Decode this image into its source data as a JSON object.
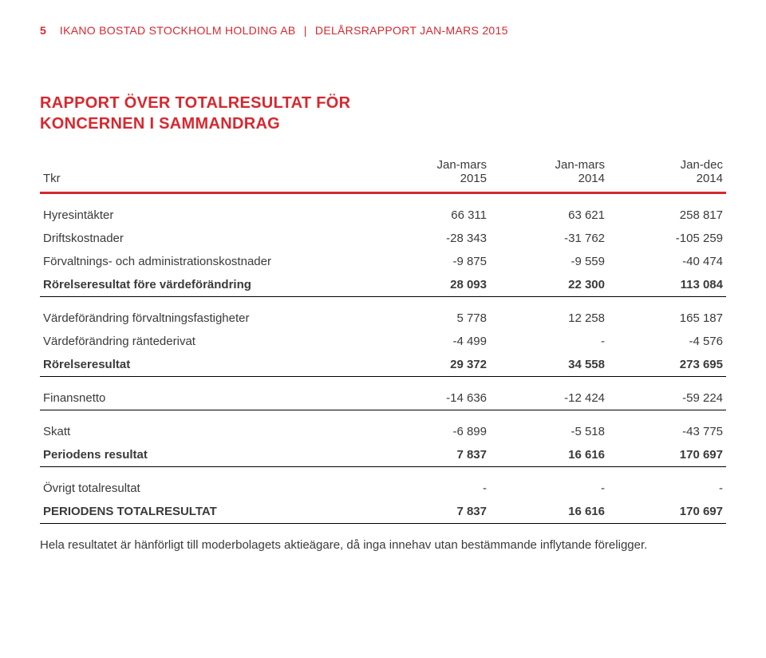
{
  "colors": {
    "accent": "#d7282f",
    "text": "#3a3a3a",
    "rule": "#000000"
  },
  "header": {
    "page_number": "5",
    "company": "IKANO BOSTAD STOCKHOLM HOLDING AB",
    "separator": "|",
    "doc_title": "DELÅRSRAPPORT JAN-MARS 2015"
  },
  "title_line1": "RAPPORT ÖVER TOTALRESULTAT FÖR",
  "title_line2": "KONCERNEN I SAMMANDRAG",
  "columns": {
    "c1": "Tkr",
    "c2_top": "Jan-mars",
    "c2_bot": "2015",
    "c3_top": "Jan-mars",
    "c3_bot": "2014",
    "c4_top": "Jan-dec",
    "c4_bot": "2014"
  },
  "rows": [
    {
      "label": "Hyresintäkter",
      "v1": "66 311",
      "v2": "63 621",
      "v3": "258 817",
      "bold": false,
      "spacer": true,
      "section_end": false
    },
    {
      "label": "Driftskostnader",
      "v1": "-28 343",
      "v2": "-31 762",
      "v3": "-105 259",
      "bold": false,
      "spacer": false,
      "section_end": false
    },
    {
      "label": "Förvaltnings- och administrationskostnader",
      "v1": "-9 875",
      "v2": "-9 559",
      "v3": "-40 474",
      "bold": false,
      "spacer": false,
      "section_end": false
    },
    {
      "label": "Rörelseresultat före värdeförändring",
      "v1": "28 093",
      "v2": "22 300",
      "v3": "113 084",
      "bold": true,
      "spacer": false,
      "section_end": true
    },
    {
      "label": "Värdeförändring förvaltningsfastigheter",
      "v1": "5 778",
      "v2": "12 258",
      "v3": "165 187",
      "bold": false,
      "spacer": true,
      "section_end": false
    },
    {
      "label": "Värdeförändring räntederivat",
      "v1": "-4 499",
      "v2": "-",
      "v3": "-4 576",
      "bold": false,
      "spacer": false,
      "section_end": false
    },
    {
      "label": "Rörelseresultat",
      "v1": "29 372",
      "v2": "34 558",
      "v3": "273 695",
      "bold": true,
      "spacer": false,
      "section_end": true
    },
    {
      "label": "Finansnetto",
      "v1": "-14 636",
      "v2": "-12 424",
      "v3": "-59 224",
      "bold": false,
      "spacer": true,
      "section_end": true
    },
    {
      "label": "Skatt",
      "v1": "-6 899",
      "v2": "-5 518",
      "v3": "-43 775",
      "bold": false,
      "spacer": true,
      "section_end": false
    },
    {
      "label": "Periodens resultat",
      "v1": "7 837",
      "v2": "16 616",
      "v3": "170 697",
      "bold": true,
      "spacer": false,
      "section_end": true
    },
    {
      "label": "Övrigt totalresultat",
      "v1": "-",
      "v2": "-",
      "v3": "-",
      "bold": false,
      "spacer": true,
      "section_end": false
    },
    {
      "label": "PERIODENS TOTALRESULTAT",
      "v1": "7 837",
      "v2": "16 616",
      "v3": "170 697",
      "bold": true,
      "spacer": false,
      "section_end": true
    }
  ],
  "footnote": "Hela resultatet är hänförligt till moderbolagets aktieägare, då inga innehav utan bestämmande inflytande föreligger."
}
